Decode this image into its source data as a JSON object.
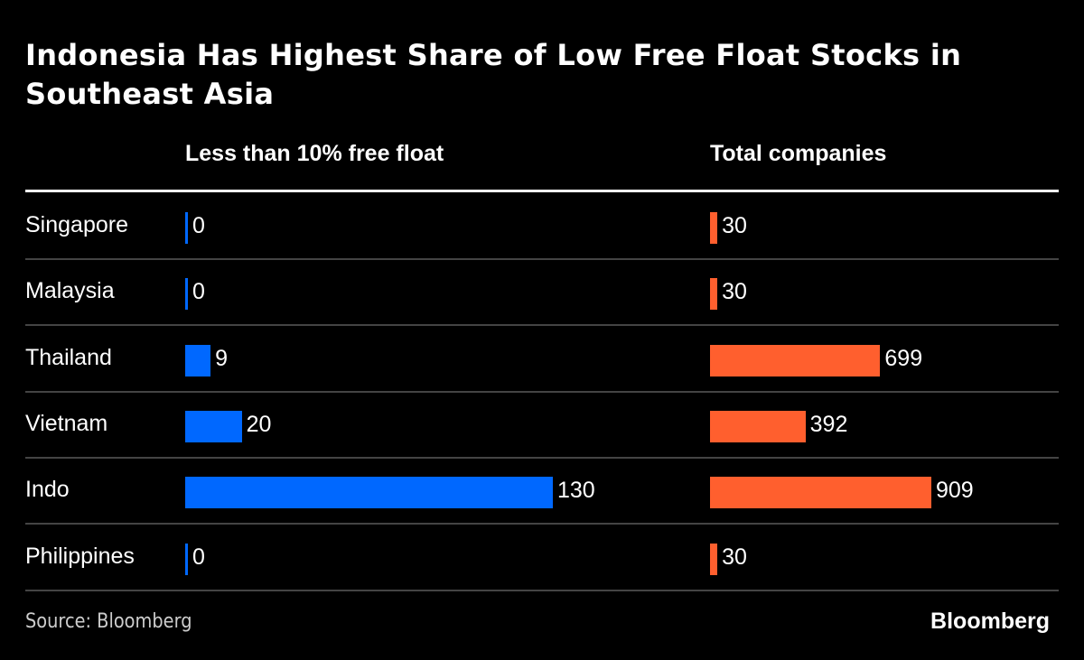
{
  "chart_data": {
    "type": "bar",
    "title": "Indonesia Has Highest Share of Low Free Float Stocks in Southeast Asia",
    "categories": [
      "Singapore",
      "Malaysia",
      "Thailand",
      "Vietnam",
      "Indo",
      "Philippines"
    ],
    "series": [
      {
        "name": "Less than 10% free float",
        "values": [
          0,
          0,
          9,
          20,
          130,
          0
        ],
        "color": "#0068FF"
      },
      {
        "name": "Total companies",
        "values": [
          30,
          30,
          699,
          392,
          909,
          30
        ],
        "color": "#FF5F2E"
      }
    ],
    "xlabel": "",
    "ylabel": "",
    "grid": false,
    "orientation": "horizontal"
  },
  "footer": {
    "source": "Source: Bloomberg",
    "brand": "Bloomberg"
  }
}
